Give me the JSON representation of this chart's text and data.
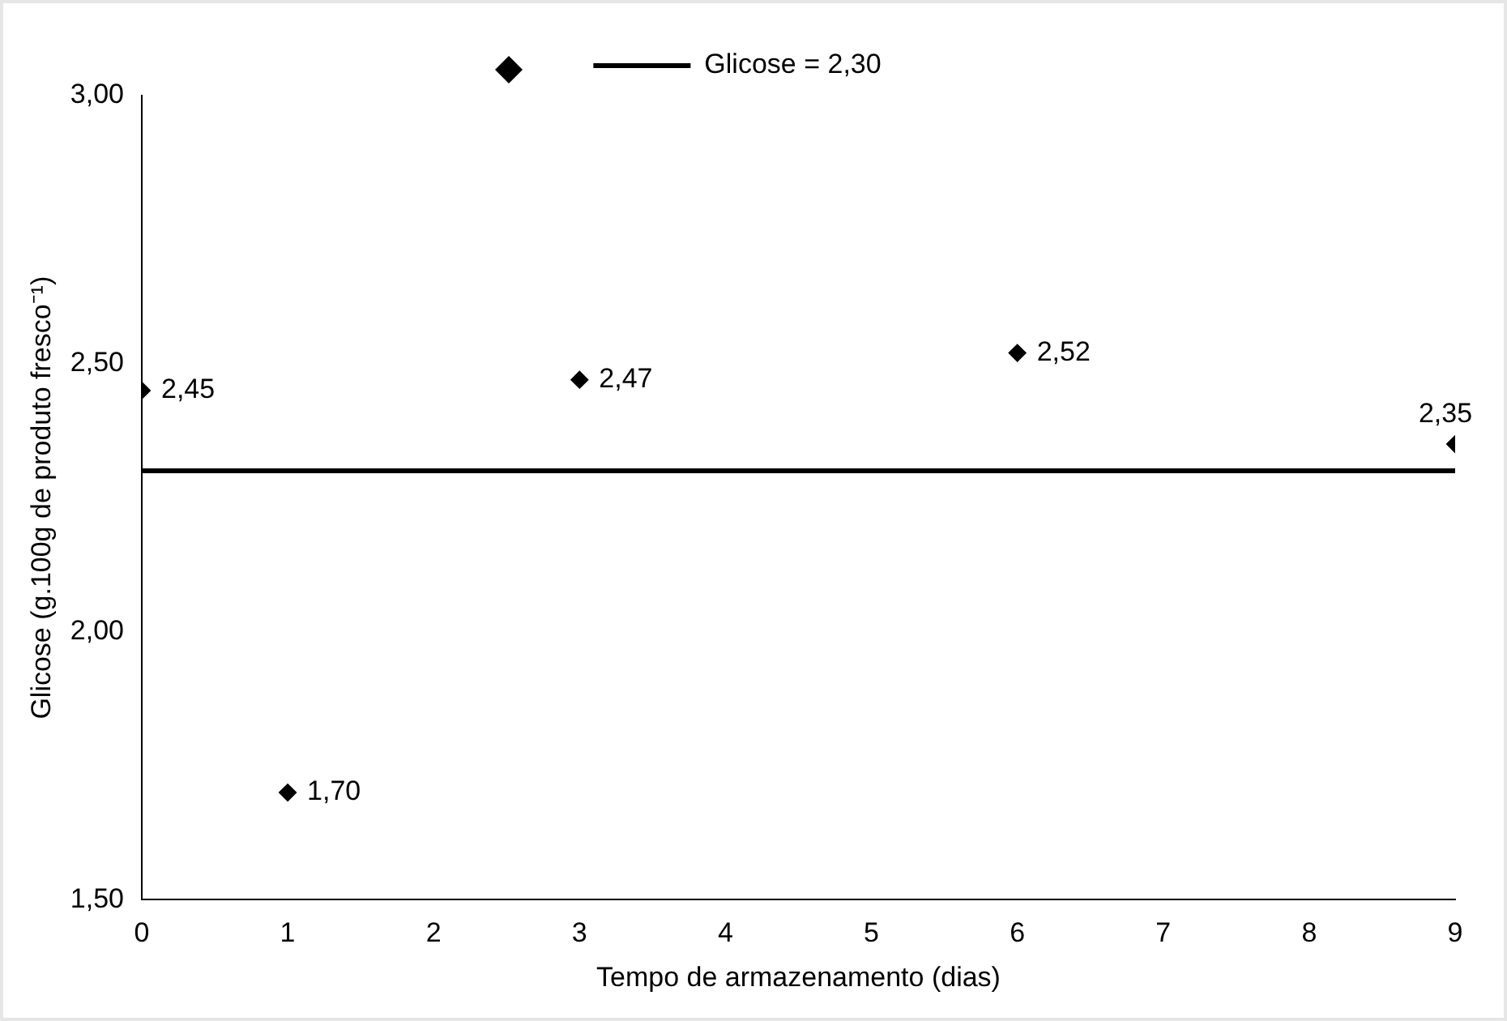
{
  "chart_data": {
    "type": "scatter",
    "xlabel": "Tempo de armazenamento (dias)",
    "ylabel": "Glicose (g.100g de produto fresco⁻¹)",
    "xlim": [
      0,
      9
    ],
    "xticks": [
      0,
      1,
      2,
      3,
      4,
      5,
      6,
      7,
      8,
      9
    ],
    "ylim": [
      1.5,
      3
    ],
    "yticks": [
      {
        "value": 1.5,
        "label": "1,50"
      },
      {
        "value": 2,
        "label": "2,00"
      },
      {
        "value": 2.5,
        "label": "2,50"
      },
      {
        "value": 3,
        "label": "3,00"
      }
    ],
    "grid": false,
    "legend": "top",
    "marker": "diamond",
    "series": [
      {
        "color": "#000000",
        "x": [
          0,
          1,
          3,
          6,
          9
        ],
        "values": [
          2.45,
          1.7,
          2.47,
          2.52,
          2.35
        ],
        "value_labels": [
          "2,45",
          "1,70",
          "2,47",
          "2,52",
          "2,35"
        ]
      },
      {
        "type": "line",
        "name": "Glicose = 2,30",
        "color": "#000000",
        "x": [
          0,
          9
        ],
        "values": [
          2.3,
          2.3
        ],
        "marker": "none",
        "line_style": "solid"
      }
    ]
  }
}
